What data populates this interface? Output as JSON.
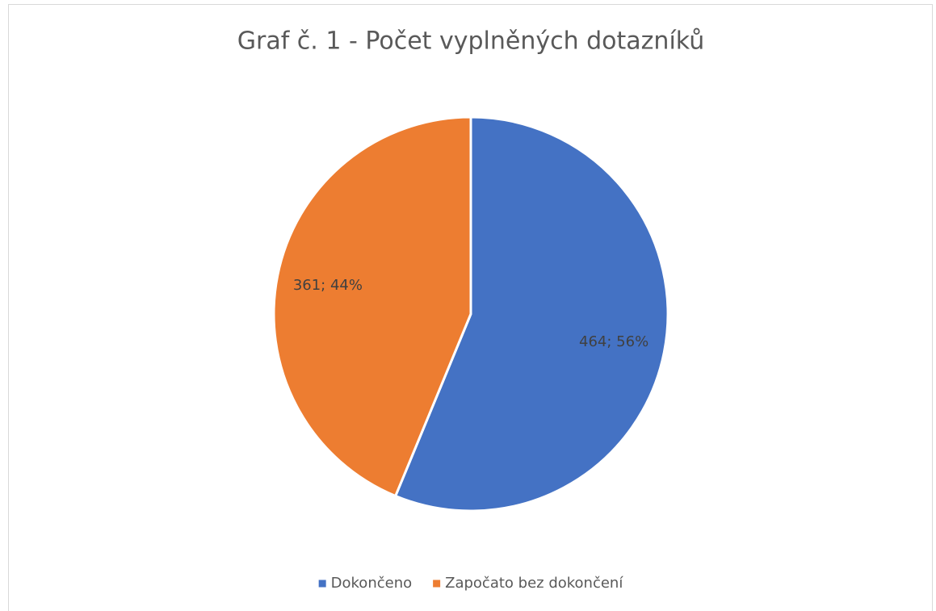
{
  "chart_data": {
    "type": "pie",
    "title": "Graf č. 1 - Počet vyplněných dotazníků",
    "categories": [
      "Dokončeno",
      "Započato bez dokončení"
    ],
    "values": [
      464,
      361
    ],
    "value_labels": [
      "464; 56%",
      "361; 44%"
    ],
    "colors": [
      "#4472c4",
      "#ed7d31"
    ],
    "legend": "bottom"
  }
}
